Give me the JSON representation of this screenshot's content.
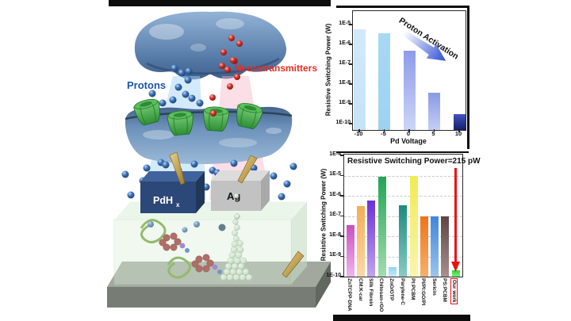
{
  "figure": {
    "frame_color": "#0d0d0d",
    "background": "#ffffff"
  },
  "illustration": {
    "labels": {
      "protons": "Protons",
      "neurotransmitters": "Neurotransmitters",
      "electrode_left_main": "PdH",
      "electrode_left_sub": "x",
      "electrode_right": "Ag"
    },
    "colors": {
      "protons_text": "#1c57a8",
      "neurotransmitters_text": "#e62e24",
      "proton_sphere": "#3c72b8",
      "neurotransmitter_sphere": "#d93025",
      "receptor_green": "#3fae3f",
      "pdh_box": "#2c4878",
      "ag_box": "#c2c2c2",
      "film_box": "#d8eed8",
      "probe_gold": "#c9a84c",
      "platform_gray": "#8a9288"
    }
  },
  "chart_data": [
    {
      "id": "proton-activation-chart",
      "type": "bar",
      "scale": "log",
      "annotation": "Proton Activation",
      "xlabel": "Pd Voltage",
      "ylabel": "Resistive Switching Power (W)",
      "categories": [
        "-10",
        "-5",
        "0",
        "5",
        "10"
      ],
      "values": [
        6e-06,
        3.5e-06,
        5e-07,
        3.5e-09,
        3e-10
      ],
      "yticks": [
        "1E-5",
        "1E-6",
        "1E-7",
        "1E-8",
        "1E-9",
        "1E-10"
      ],
      "ylim": [
        1e-10,
        2e-05
      ],
      "grid": false,
      "bar_colors": [
        [
          "#d2e9f8",
          "#c6e3f7"
        ],
        [
          "#a8d8f3",
          "#9cd2f1"
        ],
        [
          "#8d9ce8",
          "#ccd5f8"
        ],
        [
          "#8a99e6",
          "#c5cff6"
        ],
        [
          "#4153c4",
          "#141f66"
        ]
      ],
      "arrow_gradient": [
        "#ffffff",
        "#2f4fd4"
      ]
    },
    {
      "id": "comparison-chart",
      "type": "bar",
      "scale": "log",
      "title": "Resistive Switching Power=215 pW",
      "ylabel": "Resistive Switching Power (W)",
      "categories": [
        "ZnTCPP-DNA",
        "CM:K-car",
        "Silk Fibroin",
        "Chitosan-rGO",
        "ZnO/OTP",
        "Parylene-C",
        "PI:PCBM",
        "PI/PI:GO/PI",
        "Sericin",
        "PS:PCBM",
        "Our work"
      ],
      "values": [
        3.5e-08,
        3e-07,
        6e-07,
        9e-06,
        3e-10,
        3.5e-07,
        1e-05,
        1e-07,
        1e-07,
        1e-07,
        2.15e-10
      ],
      "yticks": [
        "1E-4",
        "1E-5",
        "1E-6",
        "1E-7",
        "1E-8",
        "1E-9",
        "1E-10"
      ],
      "ylim": [
        1e-10,
        0.0001
      ],
      "grid": true,
      "highlight_index": 10,
      "highlight_color": "#ee1111",
      "bar_colors": [
        [
          "#c94fc4",
          "#f0b4ec"
        ],
        [
          "#f4ad55",
          "#fad9a8"
        ],
        [
          "#6d2fd8",
          "#c0a4f0"
        ],
        [
          "#23a455",
          "#a4dcae"
        ],
        [
          "#8fd4f2",
          "#c4eafa"
        ],
        [
          "#1b8a80",
          "#86ccc4"
        ],
        [
          "#f2ea55",
          "#faf5ae"
        ],
        [
          "#f07318",
          "#f8b06a"
        ],
        [
          "#3f86dd",
          "#9cc4ee"
        ],
        [
          "#5f4343",
          "#a88f8f"
        ],
        [
          "#2ed82e",
          "#7cf07c"
        ]
      ]
    }
  ]
}
